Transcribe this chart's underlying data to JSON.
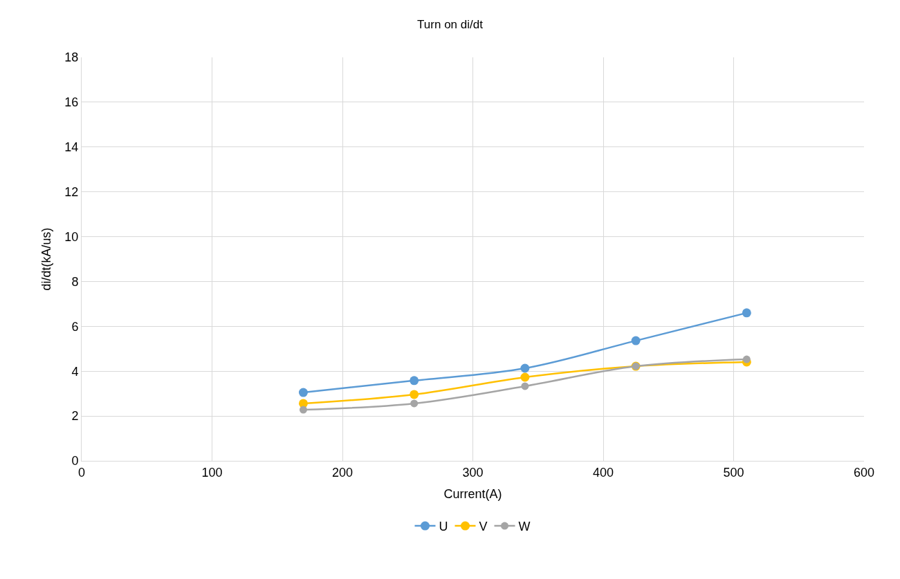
{
  "chart_data": {
    "type": "line",
    "title": "Turn on di/dt",
    "xlabel": "Current(A)",
    "ylabel": "di/dt(kA/us)",
    "x": [
      170,
      255,
      340,
      425,
      510
    ],
    "series": [
      {
        "name": "U",
        "color": "#5b9bd5",
        "values": [
          3.05,
          3.58,
          4.13,
          5.36,
          6.6
        ]
      },
      {
        "name": "V",
        "color": "#ffc000",
        "values": [
          2.56,
          2.96,
          3.73,
          4.22,
          4.41
        ]
      },
      {
        "name": "W",
        "color": "#a5a5a5",
        "values": [
          2.28,
          2.56,
          3.33,
          4.22,
          4.53
        ]
      }
    ],
    "xlim": [
      0,
      600
    ],
    "xticks": [
      0,
      100,
      200,
      300,
      400,
      500,
      600
    ],
    "ylim": [
      0,
      18
    ],
    "yticks": [
      0,
      2,
      4,
      6,
      8,
      10,
      12,
      14,
      16,
      18
    ],
    "grid": true,
    "legend": "bottom",
    "marker": "circle",
    "line_style": "solid"
  }
}
